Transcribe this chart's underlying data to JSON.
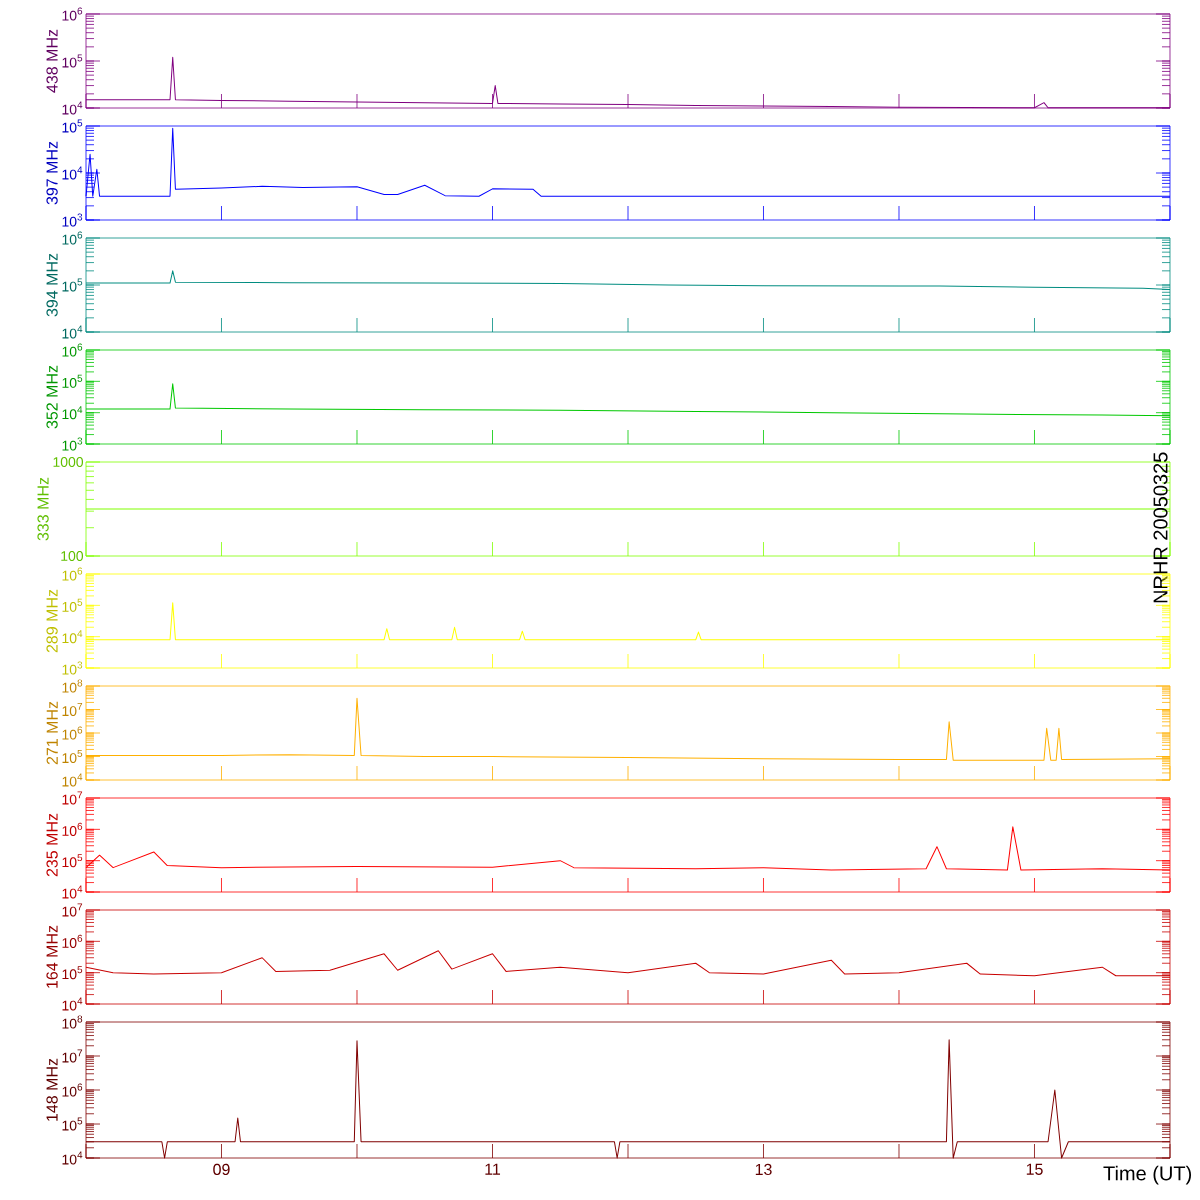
{
  "chart_data": [
    {
      "type": "line",
      "ylabel": "438 MHz",
      "color": "#800080",
      "log": "y",
      "ylim": [
        10000,
        1000000
      ],
      "yticks": [
        {
          "value": 10000,
          "label": "10$^{4}$"
        },
        {
          "value": 100000,
          "label": "10$^{5}$"
        },
        {
          "value": 1000000,
          "label": "10$^{6}$"
        }
      ],
      "xlim": [
        8,
        16
      ],
      "xticks": [
        {
          "value": 8,
          "label": null
        },
        {
          "value": 9,
          "label": null
        },
        {
          "value": 10,
          "label": null
        },
        {
          "value": 11,
          "label": null
        },
        {
          "value": 12,
          "label": null
        },
        {
          "value": 13,
          "label": null
        },
        {
          "value": 14,
          "label": null
        },
        {
          "value": 15,
          "label": null
        },
        {
          "value": 16,
          "label": null
        }
      ],
      "tick_labels": "y",
      "x": [
        8.0,
        8.5,
        8.62,
        8.64,
        8.66,
        9.0,
        9.5,
        10.0,
        10.5,
        11.0,
        11.02,
        11.04,
        11.5,
        12.0,
        12.5,
        13.0,
        13.5,
        14.0,
        14.5,
        15.0,
        15.07,
        15.1,
        15.5,
        16.0
      ],
      "values": [
        15000,
        15000,
        15000,
        120000,
        15000,
        14500,
        14000,
        13500,
        13000,
        12500,
        30000,
        12500,
        12200,
        11800,
        11300,
        11000,
        10700,
        10400,
        10200,
        10100,
        13000,
        10100,
        10100,
        10100
      ]
    },
    {
      "type": "line",
      "ylabel": "397 MHz",
      "color": "#0000ff",
      "log": "y",
      "ylim": [
        1000,
        100000
      ],
      "yticks": [
        {
          "value": 1000,
          "label": "10$^{3}$"
        },
        {
          "value": 10000,
          "label": "10$^{4}$"
        },
        {
          "value": 100000,
          "label": "10$^{5}$"
        }
      ],
      "xlim": [
        8,
        16
      ],
      "xticks": [
        {
          "value": 8,
          "label": null
        },
        {
          "value": 9,
          "label": null
        },
        {
          "value": 10,
          "label": null
        },
        {
          "value": 11,
          "label": null
        },
        {
          "value": 12,
          "label": null
        },
        {
          "value": 13,
          "label": null
        },
        {
          "value": 14,
          "label": null
        },
        {
          "value": 15,
          "label": null
        },
        {
          "value": 16,
          "label": null
        }
      ],
      "tick_labels": "y",
      "x": [
        8.0,
        8.03,
        8.05,
        8.08,
        8.1,
        8.4,
        8.62,
        8.64,
        8.66,
        9.0,
        9.3,
        9.6,
        10.0,
        10.2,
        10.3,
        10.5,
        10.65,
        10.9,
        11.0,
        11.3,
        11.36,
        12.0,
        14.0,
        16.0
      ],
      "values": [
        3200,
        25000,
        3200,
        12000,
        3200,
        3200,
        3200,
        90000,
        4500,
        4800,
        5200,
        4900,
        5100,
        3500,
        3500,
        5500,
        3300,
        3200,
        4600,
        4500,
        3200,
        3200,
        3200,
        3200
      ]
    },
    {
      "type": "line",
      "ylabel": "394 MHz",
      "color": "#008c80",
      "log": "y",
      "ylim": [
        10000,
        1000000
      ],
      "yticks": [
        {
          "value": 10000,
          "label": "10$^{4}$"
        },
        {
          "value": 100000,
          "label": "10$^{5}$"
        },
        {
          "value": 1000000,
          "label": "10$^{6}$"
        }
      ],
      "xlim": [
        8,
        16
      ],
      "xticks": [
        {
          "value": 8,
          "label": null
        },
        {
          "value": 9,
          "label": null
        },
        {
          "value": 10,
          "label": null
        },
        {
          "value": 11,
          "label": null
        },
        {
          "value": 12,
          "label": null
        },
        {
          "value": 13,
          "label": null
        },
        {
          "value": 14,
          "label": null
        },
        {
          "value": 15,
          "label": null
        },
        {
          "value": 16,
          "label": null
        }
      ],
      "tick_labels": "y",
      "x": [
        8.0,
        8.62,
        8.64,
        8.66,
        9.5,
        10.5,
        11.5,
        12.3,
        13.0,
        14.0,
        14.3,
        15.0,
        15.8,
        16.0
      ],
      "values": [
        110000,
        110000,
        200000,
        115000,
        112000,
        110000,
        108000,
        100000,
        97000,
        95000,
        95000,
        90000,
        85000,
        80000
      ]
    },
    {
      "type": "line",
      "ylabel": "352 MHz",
      "color": "#00c800",
      "log": "y",
      "ylim": [
        1000,
        1000000
      ],
      "yticks": [
        {
          "value": 1000,
          "label": "10$^{3}$"
        },
        {
          "value": 10000,
          "label": "10$^{4}$"
        },
        {
          "value": 100000,
          "label": "10$^{5}$"
        },
        {
          "value": 1000000,
          "label": "10$^{6}$"
        }
      ],
      "xlim": [
        8,
        16
      ],
      "xticks": [
        {
          "value": 8,
          "label": null
        },
        {
          "value": 9,
          "label": null
        },
        {
          "value": 10,
          "label": null
        },
        {
          "value": 11,
          "label": null
        },
        {
          "value": 12,
          "label": null
        },
        {
          "value": 13,
          "label": null
        },
        {
          "value": 14,
          "label": null
        },
        {
          "value": 15,
          "label": null
        },
        {
          "value": 16,
          "label": null
        }
      ],
      "tick_labels": "y",
      "x": [
        8.0,
        8.62,
        8.64,
        8.66,
        9.5,
        10.5,
        11.5,
        12.5,
        13.5,
        14.5,
        15.5,
        16.0
      ],
      "values": [
        13000,
        13000,
        84000,
        14000,
        13000,
        12500,
        12000,
        11000,
        10000,
        9000,
        8500,
        8000
      ]
    },
    {
      "type": "line",
      "ylabel": "333 MHz",
      "color": "#80ff00",
      "log": "y",
      "ylim": [
        100,
        1000
      ],
      "yticks": [
        100,
        1000
      ],
      "xlim": [
        8,
        16
      ],
      "xticks": [
        {
          "value": 8,
          "label": null
        },
        {
          "value": 9,
          "label": null
        },
        {
          "value": 10,
          "label": null
        },
        {
          "value": 11,
          "label": null
        },
        {
          "value": 12,
          "label": null
        },
        {
          "value": 13,
          "label": null
        },
        {
          "value": 14,
          "label": null
        },
        {
          "value": 15,
          "label": null
        },
        {
          "value": 16,
          "label": null
        }
      ],
      "tick_labels": "y",
      "annotations": [
        "NRHR 20050325"
      ],
      "x": [
        8.0,
        10.0,
        12.0,
        14.0,
        16.0
      ],
      "values": [
        316,
        316,
        316,
        316,
        316
      ]
    },
    {
      "type": "line",
      "ylabel": "289 MHz",
      "color": "#ffff00",
      "log": "y",
      "ylim": [
        1000,
        1000000
      ],
      "yticks": [
        {
          "value": 1000,
          "label": "10$^{3}$"
        },
        {
          "value": 10000,
          "label": "10$^{4}$"
        },
        {
          "value": 100000,
          "label": "10$^{5}$"
        },
        {
          "value": 1000000,
          "label": "10$^{6}$"
        }
      ],
      "xlim": [
        8,
        16
      ],
      "xticks": [
        {
          "value": 8,
          "label": null
        },
        {
          "value": 9,
          "label": null
        },
        {
          "value": 10,
          "label": null
        },
        {
          "value": 11,
          "label": null
        },
        {
          "value": 12,
          "label": null
        },
        {
          "value": 13,
          "label": null
        },
        {
          "value": 14,
          "label": null
        },
        {
          "value": 15,
          "label": null
        },
        {
          "value": 16,
          "label": null
        }
      ],
      "tick_labels": "y",
      "x": [
        8.0,
        8.62,
        8.64,
        8.66,
        9.0,
        9.6,
        10.2,
        10.22,
        10.24,
        10.7,
        10.72,
        10.74,
        11.2,
        11.22,
        11.24,
        12.5,
        12.52,
        12.54,
        16.0
      ],
      "values": [
        8000,
        8000,
        120000,
        8000,
        8000,
        8000,
        8000,
        18000,
        8000,
        8000,
        20000,
        8000,
        8000,
        15000,
        8000,
        8000,
        14000,
        8000,
        8000
      ]
    },
    {
      "type": "line",
      "ylabel": "271 MHz",
      "color": "#ffb000",
      "log": "y",
      "ylim": [
        10000,
        100000000
      ],
      "yticks": [
        {
          "value": 10000,
          "label": "10$^{4}$"
        },
        {
          "value": 100000,
          "label": "10$^{5}$"
        },
        {
          "value": 1000000,
          "label": "10$^{6}$"
        },
        {
          "value": 10000000,
          "label": "10$^{7}$"
        },
        {
          "value": 100000000,
          "label": "10$^{8}$"
        }
      ],
      "xlim": [
        8,
        16
      ],
      "xticks": [
        {
          "value": 8,
          "label": null
        },
        {
          "value": 9,
          "label": null
        },
        {
          "value": 10,
          "label": null
        },
        {
          "value": 11,
          "label": null
        },
        {
          "value": 12,
          "label": null
        },
        {
          "value": 13,
          "label": null
        },
        {
          "value": 14,
          "label": null
        },
        {
          "value": 15,
          "label": null
        },
        {
          "value": 16,
          "label": null
        }
      ],
      "tick_labels": "y",
      "x": [
        8.0,
        9.0,
        9.5,
        9.98,
        10.0,
        10.03,
        10.5,
        11.0,
        12.0,
        13.0,
        14.0,
        14.35,
        14.37,
        14.4,
        15.07,
        15.09,
        15.12,
        15.16,
        15.18,
        15.2,
        16.0
      ],
      "values": [
        110000,
        110000,
        120000,
        110000,
        30000000,
        110000,
        100000,
        100000,
        90000,
        80000,
        75000,
        75000,
        3000000,
        70000,
        70000,
        1600000,
        70000,
        70000,
        1600000,
        75000,
        80000
      ]
    },
    {
      "type": "line",
      "ylabel": "235 MHz",
      "color": "#ff0000",
      "log": "y",
      "ylim": [
        10000,
        10000000
      ],
      "yticks": [
        {
          "value": 10000,
          "label": "10$^{4}$"
        },
        {
          "value": 100000,
          "label": "10$^{5}$"
        },
        {
          "value": 1000000,
          "label": "10$^{6}$"
        },
        {
          "value": 10000000,
          "label": "10$^{7}$"
        }
      ],
      "xlim": [
        8,
        16
      ],
      "xticks": [
        {
          "value": 8,
          "label": null
        },
        {
          "value": 9,
          "label": null
        },
        {
          "value": 10,
          "label": null
        },
        {
          "value": 11,
          "label": null
        },
        {
          "value": 12,
          "label": null
        },
        {
          "value": 13,
          "label": null
        },
        {
          "value": 14,
          "label": null
        },
        {
          "value": 15,
          "label": null
        },
        {
          "value": 16,
          "label": null
        }
      ],
      "tick_labels": "y",
      "x": [
        8.0,
        8.1,
        8.2,
        8.5,
        8.6,
        9.0,
        10.0,
        11.0,
        11.5,
        11.6,
        12.5,
        13.0,
        13.5,
        14.2,
        14.28,
        14.35,
        14.8,
        14.84,
        14.9,
        15.5,
        16.0
      ],
      "values": [
        60000,
        150000,
        60000,
        190000,
        70000,
        60000,
        65000,
        62000,
        100000,
        60000,
        55000,
        60000,
        50000,
        55000,
        280000,
        55000,
        50000,
        1200000,
        50000,
        55000,
        50000
      ]
    },
    {
      "type": "line",
      "ylabel": "164 MHz",
      "color": "#c80000",
      "log": "y",
      "ylim": [
        10000,
        10000000
      ],
      "yticks": [
        {
          "value": 10000,
          "label": "10$^{4}$"
        },
        {
          "value": 100000,
          "label": "10$^{5}$"
        },
        {
          "value": 1000000,
          "label": "10$^{6}$"
        },
        {
          "value": 10000000,
          "label": "10$^{7}$"
        }
      ],
      "xlim": [
        8,
        16
      ],
      "xticks": [
        {
          "value": 8,
          "label": null
        },
        {
          "value": 9,
          "label": null
        },
        {
          "value": 10,
          "label": null
        },
        {
          "value": 11,
          "label": null
        },
        {
          "value": 12,
          "label": null
        },
        {
          "value": 13,
          "label": null
        },
        {
          "value": 14,
          "label": null
        },
        {
          "value": 15,
          "label": null
        },
        {
          "value": 16,
          "label": null
        }
      ],
      "tick_labels": "y",
      "x": [
        8.0,
        8.2,
        8.5,
        9.0,
        9.3,
        9.4,
        9.8,
        10.2,
        10.3,
        10.6,
        10.7,
        11.0,
        11.1,
        11.5,
        12.0,
        12.5,
        12.6,
        13.0,
        13.5,
        13.6,
        14.0,
        14.5,
        14.6,
        15.0,
        15.5,
        15.6,
        16.0
      ],
      "values": [
        150000,
        100000,
        90000,
        100000,
        300000,
        110000,
        120000,
        400000,
        120000,
        500000,
        130000,
        400000,
        110000,
        150000,
        100000,
        200000,
        100000,
        90000,
        250000,
        90000,
        100000,
        200000,
        90000,
        80000,
        150000,
        80000,
        80000
      ]
    },
    {
      "type": "line",
      "ylabel": "148 MHz",
      "xlabel": "Time (UT)",
      "color": "#800000",
      "log": "y",
      "ylim": [
        10000,
        100000000
      ],
      "yticks": [
        {
          "value": 10000,
          "label": "10$^{4}$"
        },
        {
          "value": 100000,
          "label": "10$^{5}$"
        },
        {
          "value": 1000000,
          "label": "10$^{6}$"
        },
        {
          "value": 10000000,
          "label": "10$^{7}$"
        },
        {
          "value": 100000000,
          "label": "10$^{8}$"
        }
      ],
      "xlim": [
        8,
        16
      ],
      "xticks": [
        {
          "value": 8,
          "label": null
        },
        {
          "value": 9,
          "label": "09"
        },
        {
          "value": 10,
          "label": null
        },
        {
          "value": 11,
          "label": "11"
        },
        {
          "value": 12,
          "label": null
        },
        {
          "value": 13,
          "label": "13"
        },
        {
          "value": 14,
          "label": null
        },
        {
          "value": 15,
          "label": "15"
        },
        {
          "value": 16,
          "label": null
        }
      ],
      "x": [
        8.0,
        8.56,
        8.58,
        8.6,
        9.1,
        9.12,
        9.14,
        9.6,
        9.98,
        10.0,
        10.03,
        11.9,
        11.92,
        11.94,
        14.35,
        14.37,
        14.4,
        14.43,
        15.1,
        15.15,
        15.2,
        15.25,
        16.0
      ],
      "values": [
        30000,
        30000,
        10000,
        30000,
        30000,
        150000,
        30000,
        30000,
        30000,
        28000000,
        30000,
        30000,
        10000,
        30000,
        30000,
        30000000,
        10000,
        30000,
        30000,
        1000000,
        10000,
        30000,
        30000
      ]
    }
  ]
}
